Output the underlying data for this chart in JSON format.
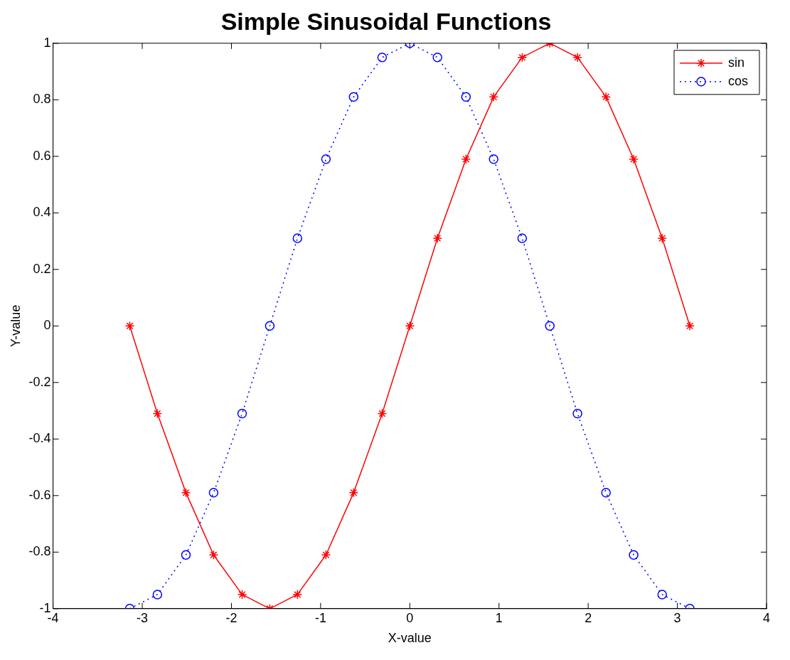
{
  "chart_data": {
    "type": "line",
    "title": "Simple Sinusoidal Functions",
    "xlabel": "X-value",
    "ylabel": "Y-value",
    "xlim": [
      -4,
      4
    ],
    "xticks": [
      -4,
      -3,
      -2,
      -1,
      0,
      1,
      2,
      3,
      4
    ],
    "ylim": [
      -1,
      1
    ],
    "yticks": [
      -1,
      -0.8,
      -0.6,
      -0.4,
      -0.2,
      0,
      0.2,
      0.4,
      0.6,
      0.8,
      1
    ],
    "grid": false,
    "legend": "top right",
    "x": [
      -3.14,
      -2.83,
      -2.51,
      -2.2,
      -1.88,
      -1.57,
      -1.26,
      -0.94,
      -0.63,
      -0.31,
      0,
      0.31,
      0.63,
      0.94,
      1.26,
      1.57,
      1.88,
      2.2,
      2.51,
      2.83,
      3.14
    ],
    "series": [
      {
        "name": "sin",
        "color": "#ff0000",
        "marker": "cross",
        "line_style": "solid",
        "values": [
          0,
          -0.31,
          -0.59,
          -0.81,
          -0.95,
          -1,
          -0.95,
          -0.81,
          -0.59,
          -0.31,
          0,
          0.31,
          0.59,
          0.81,
          0.95,
          1,
          0.95,
          0.81,
          0.59,
          0.31,
          0
        ]
      },
      {
        "name": "cos",
        "color": "#0000ff",
        "marker": "circle",
        "line_style": "dotted",
        "values": [
          -1,
          -0.95,
          -0.81,
          -0.59,
          -0.31,
          0,
          0.31,
          0.59,
          0.81,
          0.95,
          1,
          0.95,
          0.81,
          0.59,
          0.31,
          0,
          -0.31,
          -0.59,
          -0.81,
          -0.95,
          -1
        ]
      }
    ]
  }
}
